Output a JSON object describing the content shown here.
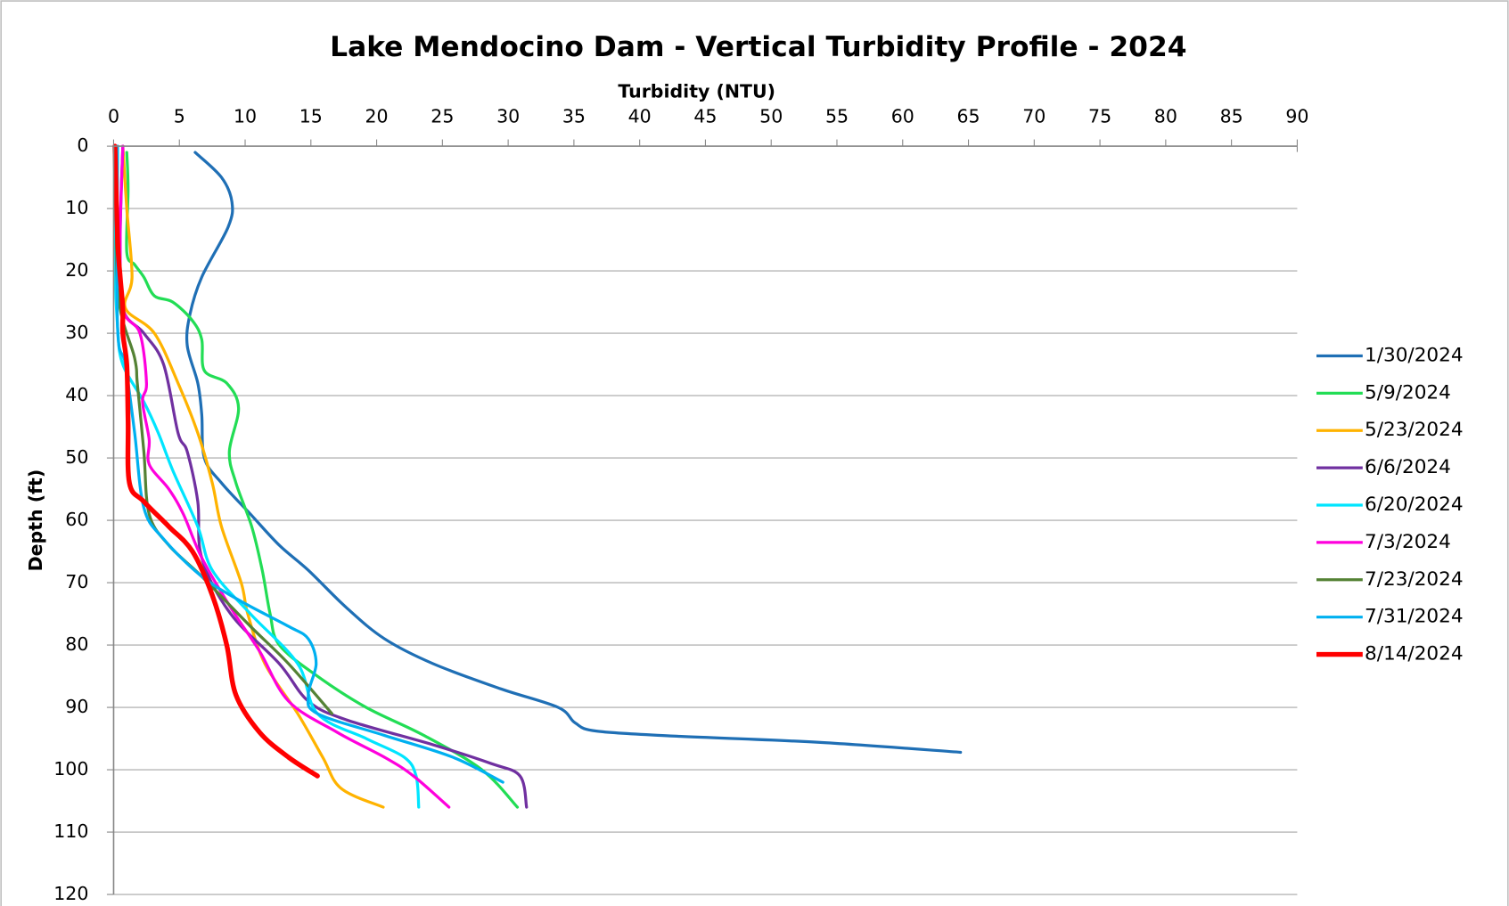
{
  "chart_data": {
    "type": "line",
    "title": "Lake Mendocino Dam - Vertical Turbidity Profile - 2024",
    "x_label": "Turbidity (NTU)",
    "y_label": "Depth (ft)",
    "xlim": [
      0,
      90
    ],
    "xticks": [
      0,
      5,
      10,
      15,
      20,
      25,
      30,
      35,
      40,
      45,
      50,
      55,
      60,
      65,
      70,
      75,
      80,
      85,
      90
    ],
    "x_axis_position": "top",
    "ylim": [
      0,
      120
    ],
    "yticks": [
      0,
      10,
      20,
      30,
      40,
      50,
      60,
      70,
      80,
      90,
      100,
      110,
      120
    ],
    "y_inverted": true,
    "grid": "horizontal",
    "legend": "right",
    "series": [
      {
        "name": "1/30/2024",
        "color": "#1f6fb5",
        "width": 3,
        "values": [
          6.2,
          8.2,
          9.0,
          8.7,
          6.7,
          5.8,
          5.6,
          6.4,
          6.7,
          6.9,
          8.2,
          10.4,
          12.6,
          14.8,
          17.7,
          20.6,
          24.3,
          29.4,
          33.8,
          35.1,
          36.7,
          42.6,
          53.6,
          64.4
        ],
        "depth": [
          1,
          5,
          9,
          13,
          21,
          27,
          32,
          38,
          43,
          50,
          54,
          59,
          64,
          68,
          74,
          79,
          83,
          87,
          90,
          92.5,
          93.8,
          94.6,
          95.6,
          97.2
        ]
      },
      {
        "name": "5/9/2024",
        "color": "#22dd55",
        "width": 3,
        "values": [
          1.0,
          1.1,
          1.0,
          1.6,
          2.3,
          3.1,
          4.5,
          6.0,
          6.7,
          6.9,
          8.6,
          9.5,
          8.8,
          9.3,
          10.5,
          11.3,
          11.9,
          12.6,
          15.5,
          19.2,
          23.6,
          28.0,
          30.7
        ],
        "depth": [
          1,
          7,
          17,
          19,
          21,
          24,
          25,
          28,
          31,
          36,
          38,
          42,
          49,
          54,
          61,
          68,
          75,
          80,
          85,
          90,
          94.5,
          100,
          106
        ]
      },
      {
        "name": "5/23/2024",
        "color": "#ffb300",
        "width": 3,
        "values": [
          0.7,
          1.0,
          1.4,
          0.9,
          3.1,
          4.9,
          6.4,
          7.5,
          8.2,
          9.7,
          10.2,
          11.5,
          14.0,
          15.9,
          17.3,
          20.5
        ],
        "depth": [
          0,
          10,
          21,
          26,
          30,
          38,
          46,
          54,
          61,
          70,
          75,
          83,
          91,
          98,
          103,
          106
        ]
      },
      {
        "name": "6/6/2024",
        "color": "#7030a0",
        "width": 3,
        "values": [
          0.7,
          0.5,
          0.7,
          2.3,
          3.8,
          4.9,
          5.6,
          6.4,
          6.7,
          8.9,
          12.6,
          14.8,
          17.7,
          24.3,
          28.7,
          30.9,
          31.4
        ],
        "depth": [
          0,
          15,
          26,
          30,
          35,
          46,
          49,
          57,
          66,
          75,
          83,
          89,
          92,
          96,
          99,
          101,
          106
        ]
      },
      {
        "name": "6/20/2024",
        "color": "#00e5ff",
        "width": 3,
        "values": [
          0.3,
          0.1,
          0.3,
          0.7,
          2.3,
          3.4,
          4.5,
          6.4,
          7.5,
          10.4,
          14.0,
          15.5,
          19.2,
          22.1,
          23.0,
          23.2
        ],
        "depth": [
          0,
          17,
          29,
          35,
          41,
          46,
          52,
          61,
          68,
          75,
          83,
          91,
          95,
          98,
          101,
          106
        ]
      },
      {
        "name": "7/3/2024",
        "color": "#ff00dd",
        "width": 3,
        "values": [
          0.7,
          0.5,
          0.7,
          2.0,
          2.5,
          2.2,
          2.7,
          2.7,
          4.2,
          5.3,
          6.7,
          8.9,
          11.1,
          13.3,
          17.0,
          20.6,
          22.8,
          25.5
        ],
        "depth": [
          0,
          14,
          26,
          30,
          38,
          41,
          47,
          51,
          55,
          59,
          66,
          74,
          81,
          89,
          94,
          98,
          101,
          106
        ]
      },
      {
        "name": "7/23/2024",
        "color": "#548235",
        "width": 3,
        "values": [
          0.3,
          0.3,
          1.6,
          1.8,
          2.3,
          2.7,
          4.2,
          6.7,
          10.4,
          13.3,
          16.6
        ],
        "depth": [
          0,
          23,
          34,
          38,
          49,
          59,
          64,
          69,
          77,
          83,
          91
        ]
      },
      {
        "name": "7/31/2024",
        "color": "#00b0f0",
        "width": 3,
        "values": [
          0.3,
          0.3,
          0.9,
          1.6,
          2.3,
          3.8,
          6.7,
          9.7,
          13.3,
          14.8,
          15.4,
          14.8,
          15.5,
          20.6,
          25.8,
          29.6
        ],
        "depth": [
          0,
          29,
          35,
          46,
          58,
          63,
          69,
          73,
          77,
          79,
          83,
          88,
          91,
          94.5,
          98,
          102
        ]
      },
      {
        "name": "8/14/2024",
        "color": "#ff0000",
        "width": 5,
        "values": [
          0.1,
          0.3,
          0.5,
          0.7,
          0.7,
          1.0,
          1.1,
          1.2,
          2.3,
          4.2,
          6.0,
          7.5,
          8.6,
          9.3,
          11.1,
          13.3,
          15.5
        ],
        "depth": [
          0,
          15,
          21,
          26,
          30,
          35,
          44,
          54,
          57,
          61,
          65,
          72,
          80,
          88,
          94,
          98,
          101
        ]
      }
    ]
  }
}
